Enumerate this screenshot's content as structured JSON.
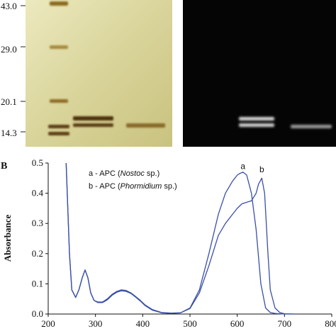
{
  "panel_a": {
    "marker_labels": [
      "43.0",
      "29.0",
      "20.1",
      "14.3"
    ]
  },
  "panel_b": {
    "letter": "B"
  },
  "chart_data": {
    "type": "line",
    "title": "",
    "xlabel": "",
    "ylabel": "Absorbance",
    "xlim": [
      200,
      800
    ],
    "ylim": [
      0,
      0.5
    ],
    "x_ticks": [
      200,
      300,
      400,
      500,
      600,
      700,
      800
    ],
    "y_ticks": [
      0.0,
      0.1,
      0.2,
      0.3,
      0.4,
      0.5
    ],
    "y_tick_labels": [
      "0.0",
      "0.1",
      "0.2",
      "0.3",
      "0.4",
      "0.5"
    ],
    "grid": false,
    "legend": {
      "placement": "top-left",
      "entries": [
        {
          "prefix": "a - APC (",
          "italic": "Nostoc",
          "suffix": " sp.)"
        },
        {
          "prefix": "b - APC (",
          "italic": "Phormidium",
          "suffix": " sp.)"
        }
      ]
    },
    "annotations": [
      {
        "text": "a",
        "x": 612,
        "y": 0.48
      },
      {
        "text": "b",
        "x": 652,
        "y": 0.47
      }
    ],
    "color": "#3a4fa8",
    "series": [
      {
        "name": "a",
        "x": [
          238,
          245,
          250,
          258,
          265,
          272,
          278,
          284,
          290,
          297,
          305,
          315,
          325,
          335,
          345,
          355,
          365,
          375,
          385,
          395,
          405,
          420,
          440,
          460,
          480,
          500,
          520,
          540,
          560,
          575,
          590,
          600,
          605,
          612,
          620,
          630,
          640,
          650,
          660,
          670,
          680,
          690,
          700,
          720
        ],
        "y": [
          0.5,
          0.2,
          0.08,
          0.055,
          0.08,
          0.12,
          0.146,
          0.12,
          0.07,
          0.045,
          0.04,
          0.04,
          0.05,
          0.065,
          0.075,
          0.08,
          0.078,
          0.07,
          0.058,
          0.045,
          0.03,
          0.015,
          0.005,
          0.003,
          0.004,
          0.02,
          0.08,
          0.2,
          0.33,
          0.4,
          0.44,
          0.46,
          0.465,
          0.47,
          0.46,
          0.4,
          0.28,
          0.1,
          0.02,
          0.005,
          0.002,
          0.001,
          0.0,
          0.0
        ]
      },
      {
        "name": "b",
        "x": [
          238,
          245,
          250,
          258,
          265,
          272,
          278,
          284,
          290,
          297,
          305,
          315,
          325,
          335,
          345,
          355,
          365,
          375,
          385,
          395,
          405,
          420,
          440,
          460,
          480,
          500,
          520,
          540,
          560,
          575,
          590,
          600,
          610,
          620,
          630,
          640,
          645,
          652,
          658,
          665,
          670,
          680,
          690,
          700,
          720
        ],
        "y": [
          0.5,
          0.2,
          0.08,
          0.055,
          0.08,
          0.12,
          0.146,
          0.12,
          0.07,
          0.045,
          0.038,
          0.038,
          0.047,
          0.062,
          0.072,
          0.077,
          0.075,
          0.068,
          0.056,
          0.043,
          0.028,
          0.013,
          0.004,
          0.002,
          0.004,
          0.018,
          0.07,
          0.16,
          0.26,
          0.3,
          0.33,
          0.35,
          0.365,
          0.37,
          0.375,
          0.4,
          0.43,
          0.45,
          0.4,
          0.2,
          0.08,
          0.02,
          0.005,
          0.001,
          0.0
        ]
      }
    ]
  }
}
